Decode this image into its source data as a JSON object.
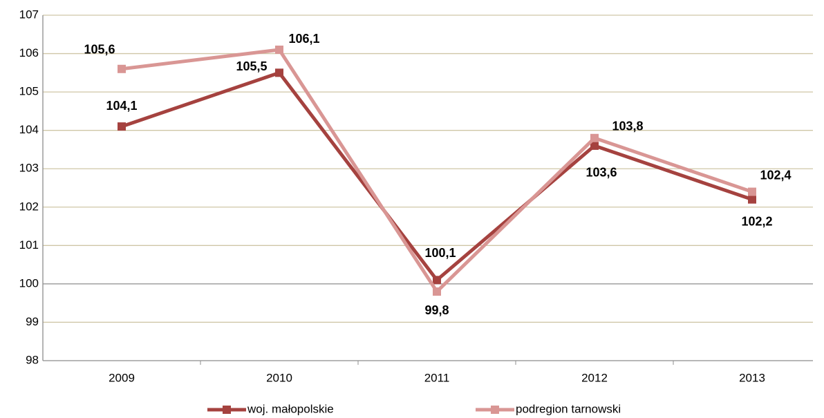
{
  "chart_data": {
    "type": "line",
    "categories": [
      "2009",
      "2010",
      "2011",
      "2012",
      "2013"
    ],
    "series": [
      {
        "name": "woj. małopolskie",
        "color": "#a5423f",
        "values": [
          104.1,
          105.5,
          100.1,
          103.6,
          102.2
        ],
        "value_labels": [
          "104,1",
          "105,5",
          "100,1",
          "103,6",
          "102,2"
        ]
      },
      {
        "name": "podregion tarnowski",
        "color": "#d99694",
        "values": [
          105.6,
          106.1,
          99.8,
          103.8,
          102.4
        ],
        "value_labels": [
          "105,6",
          "106,1",
          "99,8",
          "103,8",
          "102,4"
        ]
      }
    ],
    "ylim": [
      98,
      107
    ],
    "yticks": [
      98,
      99,
      100,
      101,
      102,
      103,
      104,
      105,
      106,
      107
    ],
    "grid": true,
    "legend": "bottom"
  }
}
